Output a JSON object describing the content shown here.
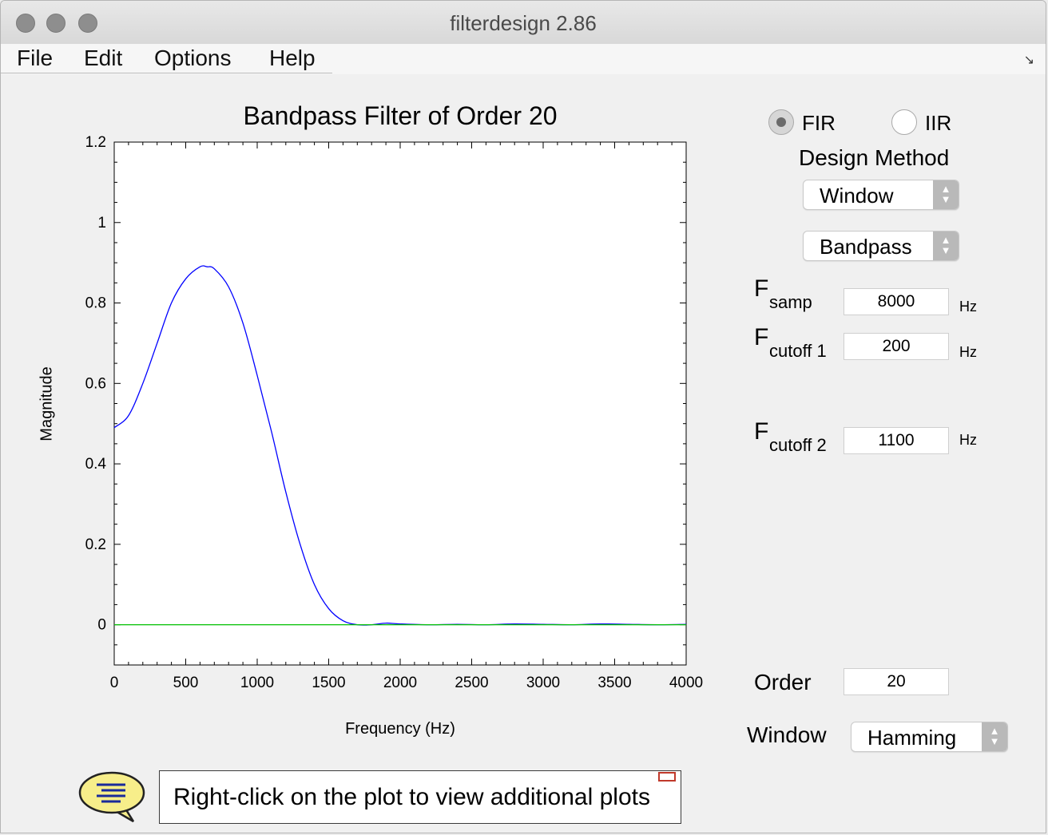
{
  "window": {
    "title": "filterdesign 2.86"
  },
  "menu": [
    "File",
    "Edit",
    "Options",
    "Help"
  ],
  "plot": {
    "title": "Bandpass Filter of Order 20",
    "xlabel": "Frequency (Hz)",
    "ylabel": "Magnitude"
  },
  "controls": {
    "filter_type": {
      "options": [
        "FIR",
        "IIR"
      ],
      "selected": "FIR"
    },
    "design_method_label": "Design Method",
    "design_method_value": "Window",
    "band_type_value": "Bandpass",
    "fsamp": {
      "main": "F",
      "sub": "samp",
      "value": "8000",
      "unit": "Hz"
    },
    "fcutoff1": {
      "main": "F",
      "sub": "cutoff 1",
      "value": "200",
      "unit": "Hz"
    },
    "fcutoff2": {
      "main": "F",
      "sub": "cutoff 2",
      "value": "1100",
      "unit": "Hz"
    },
    "order": {
      "label": "Order",
      "value": "20"
    },
    "window": {
      "label": "Window",
      "value": "Hamming"
    }
  },
  "help": {
    "text": "Right-click on the plot to view additional plots"
  },
  "colors": {
    "response": "#0000ff",
    "zero_line": "#00c000"
  },
  "chart_data": {
    "type": "line",
    "title": "Bandpass Filter of Order 20",
    "xlabel": "Frequency (Hz)",
    "ylabel": "Magnitude",
    "xlim": [
      0,
      4000
    ],
    "ylim": [
      -0.1,
      1.2
    ],
    "xticks": [
      0,
      500,
      1000,
      1500,
      2000,
      2500,
      3000,
      3500,
      4000
    ],
    "yticks": [
      0,
      0.2,
      0.4,
      0.6,
      0.8,
      1,
      1.2
    ],
    "grid": false,
    "series": [
      {
        "x": [
          0,
          100,
          200,
          300,
          400,
          500,
          600,
          650,
          700,
          800,
          900,
          1000,
          1100,
          1200,
          1300,
          1400,
          1500,
          1600,
          1700,
          1800,
          1900,
          2000,
          2200,
          2400,
          2600,
          2800,
          3000,
          3200,
          3400,
          3600,
          3800,
          4000
        ],
        "y": [
          0.49,
          0.52,
          0.6,
          0.7,
          0.8,
          0.86,
          0.89,
          0.89,
          0.885,
          0.84,
          0.75,
          0.62,
          0.48,
          0.33,
          0.2,
          0.1,
          0.04,
          0.01,
          0.0,
          0.0,
          0.004,
          0.002,
          0.0,
          0.001,
          0.0,
          0.002,
          0.001,
          0.0,
          0.002,
          0.001,
          0.0,
          0.001
        ],
        "color": "#0000ff"
      },
      {
        "x": [
          0,
          4000
        ],
        "y": [
          0,
          0
        ],
        "color": "#00c000"
      }
    ]
  }
}
